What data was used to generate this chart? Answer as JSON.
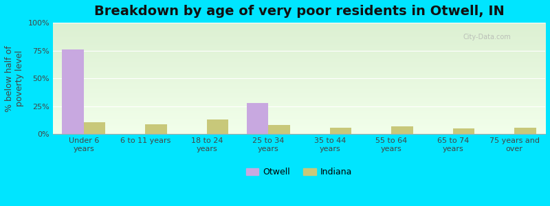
{
  "title": "Breakdown by age of very poor residents in Otwell, IN",
  "categories": [
    "Under 6\nyears",
    "6 to 11 years",
    "18 to 24\nyears",
    "25 to 34\nyears",
    "35 to 44\nyears",
    "55 to 64\nyears",
    "65 to 74\nyears",
    "75 years and\nover"
  ],
  "otwell_values": [
    76,
    0,
    0,
    28,
    0,
    0,
    0,
    0
  ],
  "indiana_values": [
    11,
    9,
    13,
    8,
    6,
    7,
    5,
    6
  ],
  "otwell_color": "#c8a8e0",
  "indiana_color": "#c8c87a",
  "ylabel": "% below half of\npoverty level",
  "ylim": [
    0,
    100
  ],
  "yticks": [
    0,
    25,
    50,
    75,
    100
  ],
  "ytick_labels": [
    "0%",
    "25%",
    "50%",
    "75%",
    "100%"
  ],
  "outer_bg": "#00e5ff",
  "bar_width": 0.35,
  "title_fontsize": 14,
  "axis_label_fontsize": 9
}
